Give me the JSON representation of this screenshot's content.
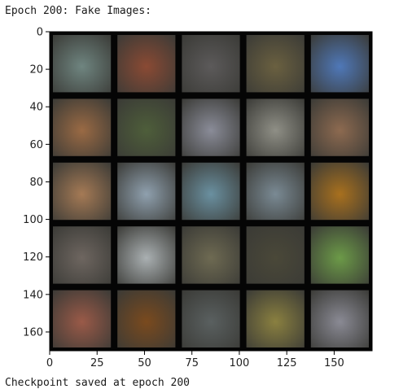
{
  "output": {
    "header": "Epoch 200: Fake Images:",
    "footer": "Checkpoint saved at epoch 200"
  },
  "chart_data": {
    "type": "heatmap",
    "title": "",
    "xlabel": "",
    "ylabel": "",
    "grid_rows": 5,
    "grid_cols": 5,
    "xlim": [
      0,
      170
    ],
    "ylim": [
      170,
      0
    ],
    "x_ticks": [
      0,
      25,
      50,
      75,
      100,
      125,
      150
    ],
    "y_ticks": [
      0,
      20,
      40,
      60,
      80,
      100,
      120,
      140,
      160
    ],
    "tile_colors": [
      [
        "#6f8580",
        "#8a4a34",
        "#5c5a5a",
        "#6a6040",
        "#4f78b8"
      ],
      [
        "#9a6a44",
        "#4e5e3a",
        "#8a8c98",
        "#8f8f86",
        "#8d6a50"
      ],
      [
        "#a57a55",
        "#8fa0ae",
        "#6a90a0",
        "#7a8a94",
        "#a8701e"
      ],
      [
        "#6e6660",
        "#aab0b2",
        "#6e6a52",
        "#4a4838",
        "#6c9a48"
      ],
      [
        "#9a5a48",
        "#7a4a1e",
        "#5a6060",
        "#8a8040",
        "#8a8a94"
      ]
    ],
    "grid": false
  }
}
